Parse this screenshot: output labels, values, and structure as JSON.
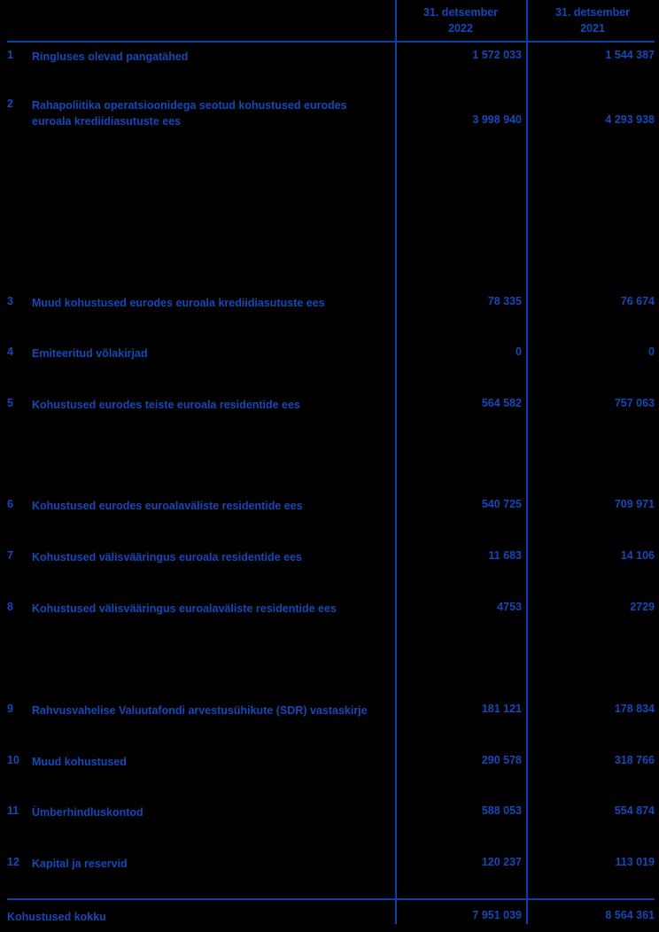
{
  "colors": {
    "background": "#000000",
    "text-blue": "#1648B8",
    "line-blue": "#0F3EA6"
  },
  "table": {
    "columns": [
      {
        "line1": "31. detsember",
        "line2": "2022"
      },
      {
        "line1": "31. detsember",
        "line2": "2021"
      }
    ],
    "rows": [
      {
        "num": "1",
        "label": "Ringluses olevad pangatähed",
        "value_2022": "1 572 033",
        "value_2021": "1 544 387"
      },
      {
        "num": "2",
        "label": "Rahapoliitika operatsioonidega seotud kohustused eurodes euroala krediidiasutuste ees",
        "value_2022": "3 998 940",
        "value_2021": "4 293 938"
      },
      {
        "num": "3",
        "label": "Muud kohustused eurodes euroala krediidiasutuste ees",
        "value_2022": "78 335",
        "value_2021": "76 674"
      },
      {
        "num": "4",
        "label": "Emiteeritud võlakirjad",
        "value_2022": "0",
        "value_2021": "0"
      },
      {
        "num": "5",
        "label": "Kohustused eurodes teiste euroala residentide ees",
        "value_2022": "564 582",
        "value_2021": "757 063"
      },
      {
        "num": "6",
        "label": "Kohustused eurodes euroalaväliste residentide ees",
        "value_2022": "540 725",
        "value_2021": "709 971"
      },
      {
        "num": "7",
        "label": "Kohustused välisvääringus euroala residentide ees",
        "value_2022": "11 683",
        "value_2021": "14 106"
      },
      {
        "num": "8",
        "label": "Kohustused välisvääringus euroalaväliste residentide ees",
        "value_2022": "4753",
        "value_2021": "2729"
      },
      {
        "num": "9",
        "label": "Rahvusvahelise Valuutafondi arvestusühikute (SDR) vastaskirje",
        "value_2022": "181 121",
        "value_2021": "178 834"
      },
      {
        "num": "10",
        "label": "Muud kohustused",
        "value_2022": "290 578",
        "value_2021": "318 766"
      },
      {
        "num": "11",
        "label": "Ümberhindluskontod",
        "value_2022": "588 053",
        "value_2021": "554 874"
      },
      {
        "num": "12",
        "label": "Kapital ja reservid",
        "value_2022": "120 237",
        "value_2021": "113 019"
      }
    ],
    "total": {
      "label": "Kohustused kokku",
      "value_2022": "7 951 039",
      "value_2021": "8 564 361"
    }
  }
}
